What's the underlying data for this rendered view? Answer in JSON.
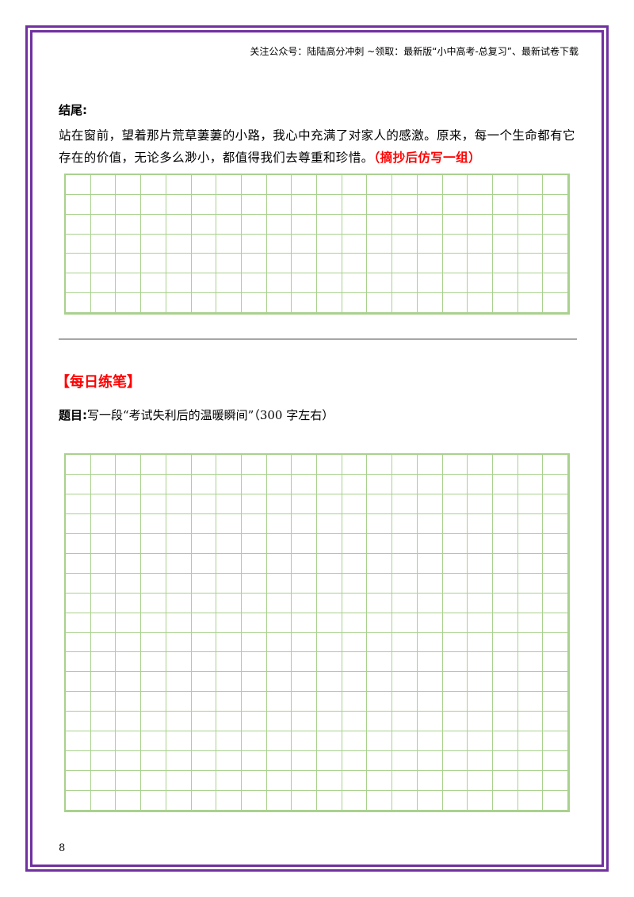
{
  "header": {
    "note": "关注公众号：陆陆高分冲刺 ~领取：最新版“小中高考-总复习”、最新试卷下载"
  },
  "ending": {
    "heading": "结尾:",
    "paragraph": "站在窗前，望着那片荒草萋萋的小路，我心中充满了对家人的感激。原来，每一个生命都有它存在的价值，无论多么渺小，都值得我们去尊重和珍惜。",
    "instruction": "（摘抄后仿写一组）"
  },
  "daily_practice": {
    "title": "【每日练笔】",
    "prompt_label": "题目:",
    "prompt_text": "写一段“考试失利后的温暖瞬间”（300 字左右）"
  },
  "footer": {
    "page_number": "8"
  },
  "colors": {
    "frame": "#7030a0",
    "grid": "#a9d18e",
    "accent_red": "#ff0000",
    "divider": "#a6a6a6"
  }
}
